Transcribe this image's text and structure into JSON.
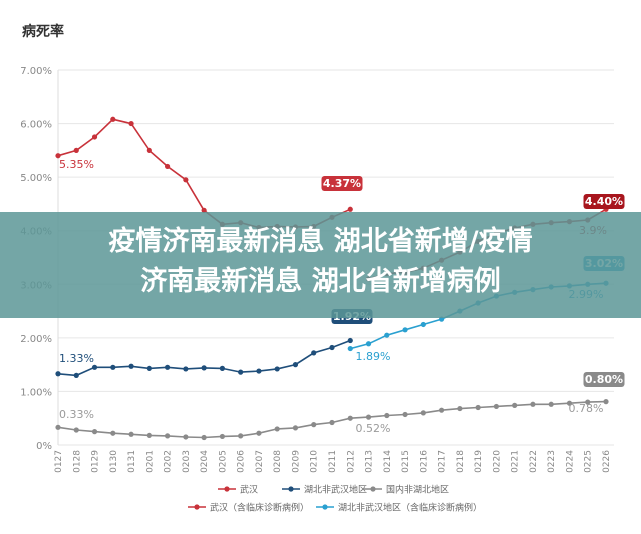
{
  "chart_data": {
    "type": "line",
    "title": "病死率",
    "categories": [
      "0127",
      "0128",
      "0129",
      "0130",
      "0131",
      "0201",
      "0202",
      "0203",
      "0204",
      "0205",
      "0206",
      "0207",
      "0208",
      "0209",
      "0210",
      "0211",
      "0212",
      "0213",
      "0214",
      "0215",
      "0216",
      "0217",
      "0218",
      "0219",
      "0220",
      "0221",
      "0222",
      "0223",
      "0224",
      "0225",
      "0226"
    ],
    "yticks": [
      "7.00%",
      "6.00%",
      "5.00%",
      "4.00%",
      "3.00%",
      "2.00%",
      "1.00%",
      "0%"
    ],
    "ylim": [
      0,
      7
    ],
    "grid": true,
    "series": [
      {
        "name": "武汉",
        "color": "#c8323a",
        "values": [
          5.4,
          5.5,
          5.75,
          6.08,
          6.0,
          5.5,
          5.2,
          4.95,
          4.38,
          4.12,
          4.15,
          4.06,
          4.08,
          4.07,
          4.08,
          4.25,
          4.4,
          null,
          null,
          null,
          null,
          null,
          null,
          null,
          null,
          null,
          null,
          null,
          null,
          null,
          null
        ]
      },
      {
        "name": "湖北非武汉地区",
        "color": "#1f4e7a",
        "values": [
          1.33,
          1.3,
          1.45,
          1.45,
          1.47,
          1.43,
          1.45,
          1.42,
          1.44,
          1.43,
          1.36,
          1.38,
          1.42,
          1.5,
          1.72,
          1.82,
          1.95,
          null,
          null,
          null,
          null,
          null,
          null,
          null,
          null,
          null,
          null,
          null,
          null,
          null,
          null
        ]
      },
      {
        "name": "国内非湖北地区",
        "color": "#8a8a8a",
        "values": [
          0.33,
          0.28,
          0.25,
          0.22,
          0.2,
          0.18,
          0.17,
          0.15,
          0.14,
          0.16,
          0.17,
          0.22,
          0.3,
          0.32,
          0.38,
          0.42,
          0.5,
          0.52,
          0.55,
          0.57,
          0.6,
          0.65,
          0.68,
          0.7,
          0.72,
          0.74,
          0.76,
          0.76,
          0.78,
          0.8,
          0.81
        ]
      },
      {
        "name": "武汉（含临床诊断病例）",
        "color": "#c8323a",
        "values": [
          null,
          null,
          null,
          null,
          null,
          null,
          null,
          null,
          null,
          null,
          null,
          null,
          null,
          null,
          null,
          null,
          null,
          3.1,
          3.2,
          3.22,
          3.3,
          3.45,
          3.6,
          3.8,
          3.95,
          4.05,
          4.12,
          4.15,
          4.17,
          4.2,
          4.4
        ]
      },
      {
        "name": "湖北非武汉地区（含临床诊断病例）",
        "color": "#2aa0d0",
        "values": [
          null,
          null,
          null,
          null,
          null,
          null,
          null,
          null,
          null,
          null,
          null,
          null,
          null,
          null,
          null,
          null,
          1.8,
          1.89,
          2.05,
          2.15,
          2.25,
          2.35,
          2.5,
          2.65,
          2.78,
          2.85,
          2.9,
          2.95,
          2.97,
          3.0,
          3.02
        ]
      }
    ],
    "annotations": [
      {
        "text": "5.35%",
        "style": "plain",
        "color": "#c8323a"
      },
      {
        "text": "4.37%",
        "style": "badge",
        "color": "#c8323a"
      },
      {
        "text": "1.33%",
        "style": "plain",
        "color": "#1f4e7a"
      },
      {
        "text": "1.92%",
        "style": "badge",
        "color": "#1f4e7a"
      },
      {
        "text": "0.33%",
        "style": "plain",
        "color": "#9a9a9a"
      },
      {
        "text": "0.52%",
        "style": "plain",
        "color": "#9a9a9a"
      },
      {
        "text": "0.78%",
        "style": "plain",
        "color": "#9a9a9a"
      },
      {
        "text": "0.80%",
        "style": "badge",
        "color": "#8a8a8a"
      },
      {
        "text": "1.89%",
        "style": "plain",
        "color": "#2aa0d0"
      },
      {
        "text": "2.99%",
        "style": "plain",
        "color": "#2aa0d0"
      },
      {
        "text": "3.02%",
        "style": "badge",
        "color": "#2aa0d0"
      },
      {
        "text": "4.40%",
        "style": "badge",
        "color": "#a8161e"
      },
      {
        "text": "3.9%",
        "style": "plain",
        "color": "#c8323a"
      }
    ],
    "legend_position": "bottom"
  },
  "banner": {
    "line1": "疫情济南最新消息 湖北省新增/疫情",
    "line2": "济南最新消息 湖北省新增病例"
  }
}
